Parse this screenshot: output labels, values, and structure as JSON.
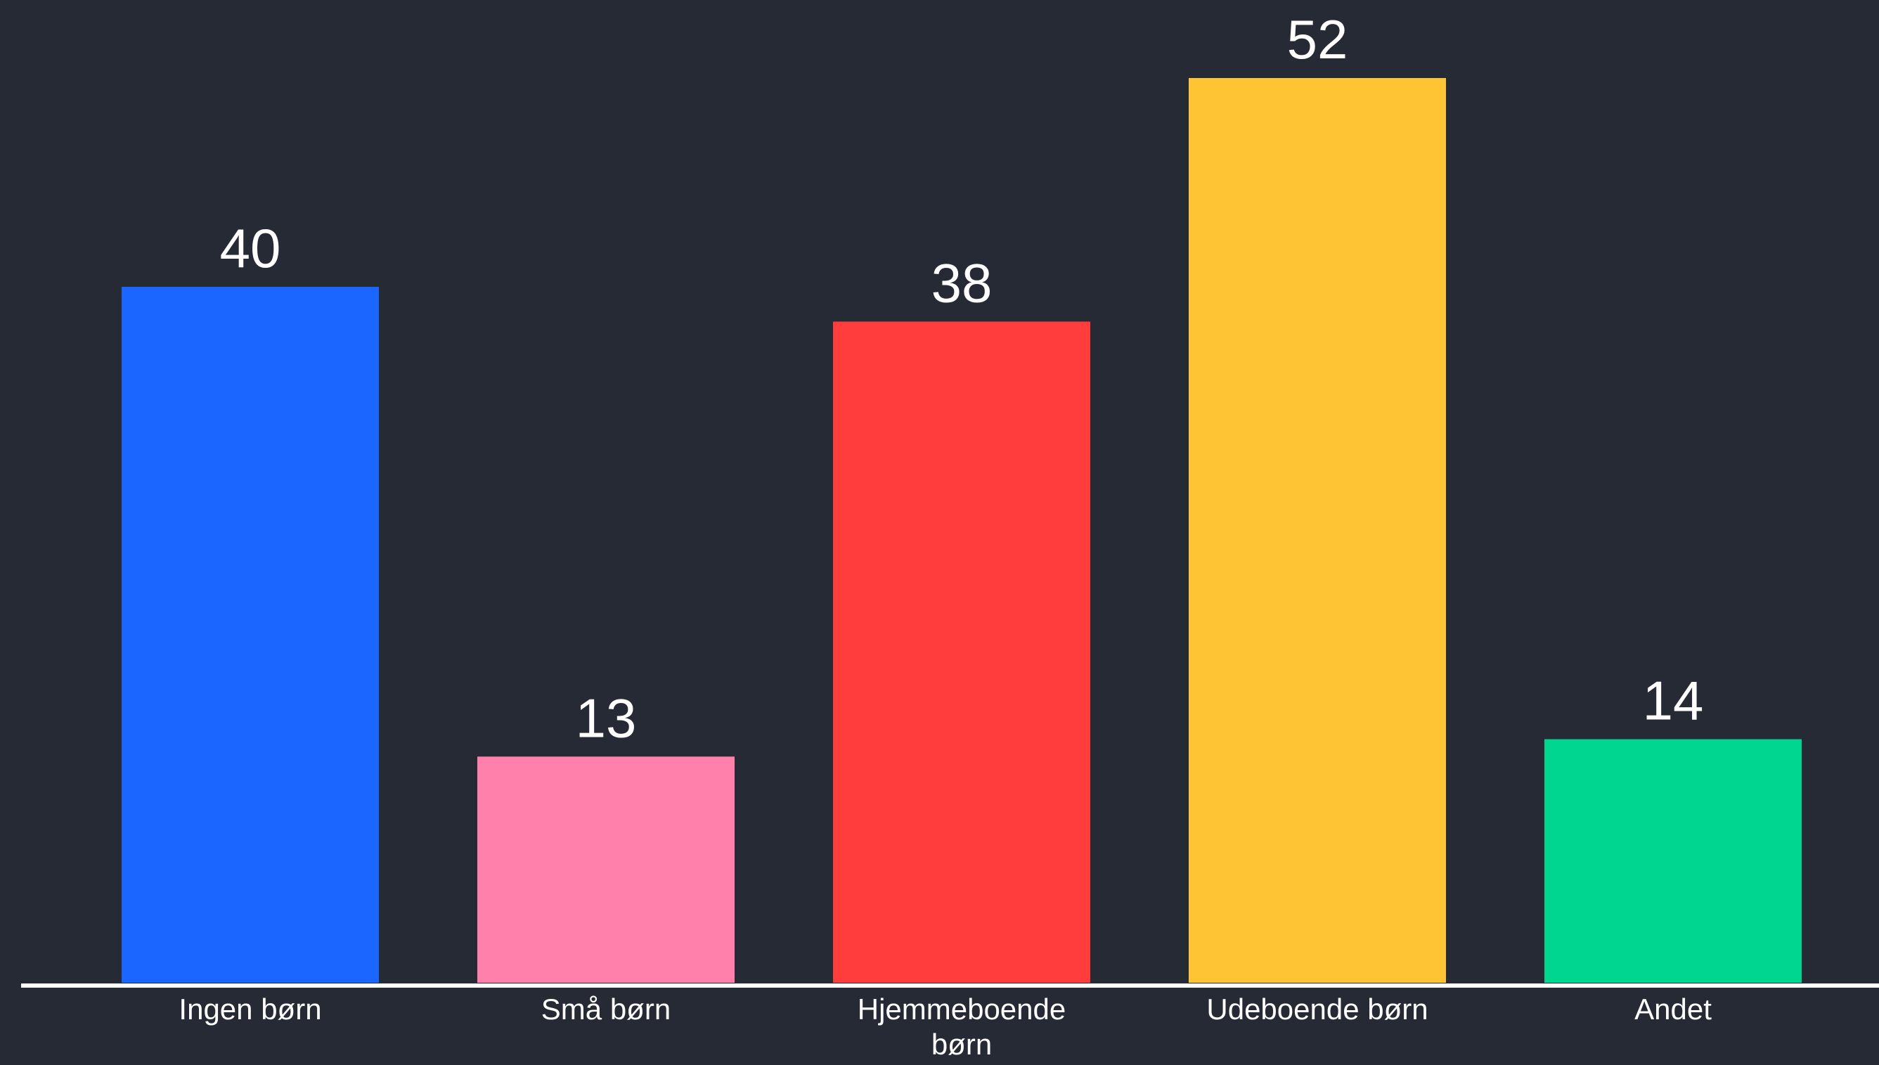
{
  "chart_data": {
    "type": "bar",
    "categories": [
      "Ingen børn",
      "Små børn",
      "Hjemmeboende børn",
      "Udeboende børn",
      "Andet"
    ],
    "category_lines": [
      [
        "Ingen børn"
      ],
      [
        "Små børn"
      ],
      [
        "Hjemmeboende",
        "børn"
      ],
      [
        "Udeboende børn"
      ],
      [
        "Andet"
      ]
    ],
    "values": [
      40,
      13,
      38,
      52,
      14
    ],
    "colors": [
      "#1a66ff",
      "#ff80aa",
      "#ff3d3d",
      "#ffc433",
      "#00d68f"
    ],
    "title": "",
    "xlabel": "",
    "ylabel": "",
    "ylim": [
      0,
      52
    ],
    "grid": false,
    "legend": "none",
    "data_labels": true,
    "axis_color": "#ffffff",
    "background": "#262a35"
  }
}
